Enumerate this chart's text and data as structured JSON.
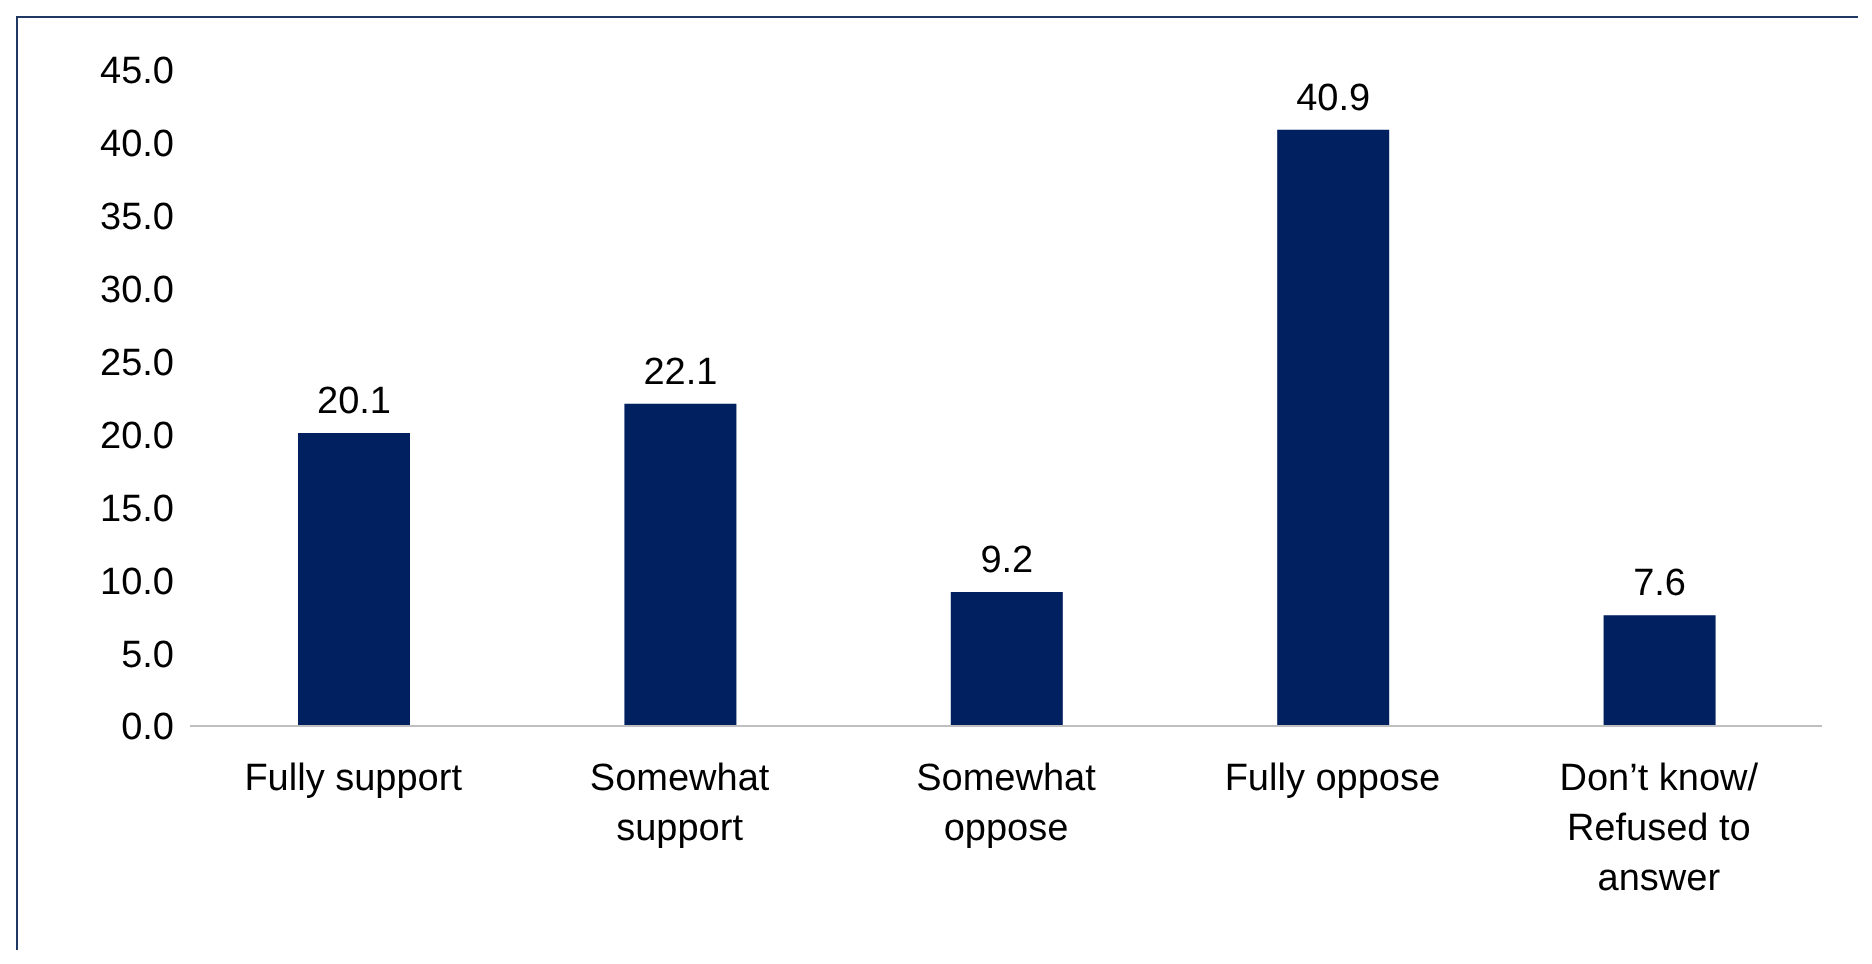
{
  "chart_data": {
    "type": "bar",
    "categories": [
      "Fully support",
      "Somewhat support",
      "Somewhat oppose",
      "Fully oppose",
      "Don’t know/ Refused to answer"
    ],
    "values": [
      20.1,
      22.1,
      9.2,
      40.9,
      7.6
    ],
    "color": "#002060",
    "data_labels": true,
    "ylim": [
      0,
      45
    ],
    "yticks": [
      {
        "value": 0,
        "label": "0.0"
      },
      {
        "value": 5,
        "label": "5.0"
      },
      {
        "value": 10,
        "label": "10.0"
      },
      {
        "value": 15,
        "label": "15.0"
      },
      {
        "value": 20,
        "label": "20.0"
      },
      {
        "value": 25,
        "label": "25.0"
      },
      {
        "value": 30,
        "label": "30.0"
      },
      {
        "value": 35,
        "label": "35.0"
      },
      {
        "value": 40,
        "label": "40.0"
      },
      {
        "value": 45,
        "label": "45.0"
      }
    ],
    "grid": false,
    "legend": false
  }
}
